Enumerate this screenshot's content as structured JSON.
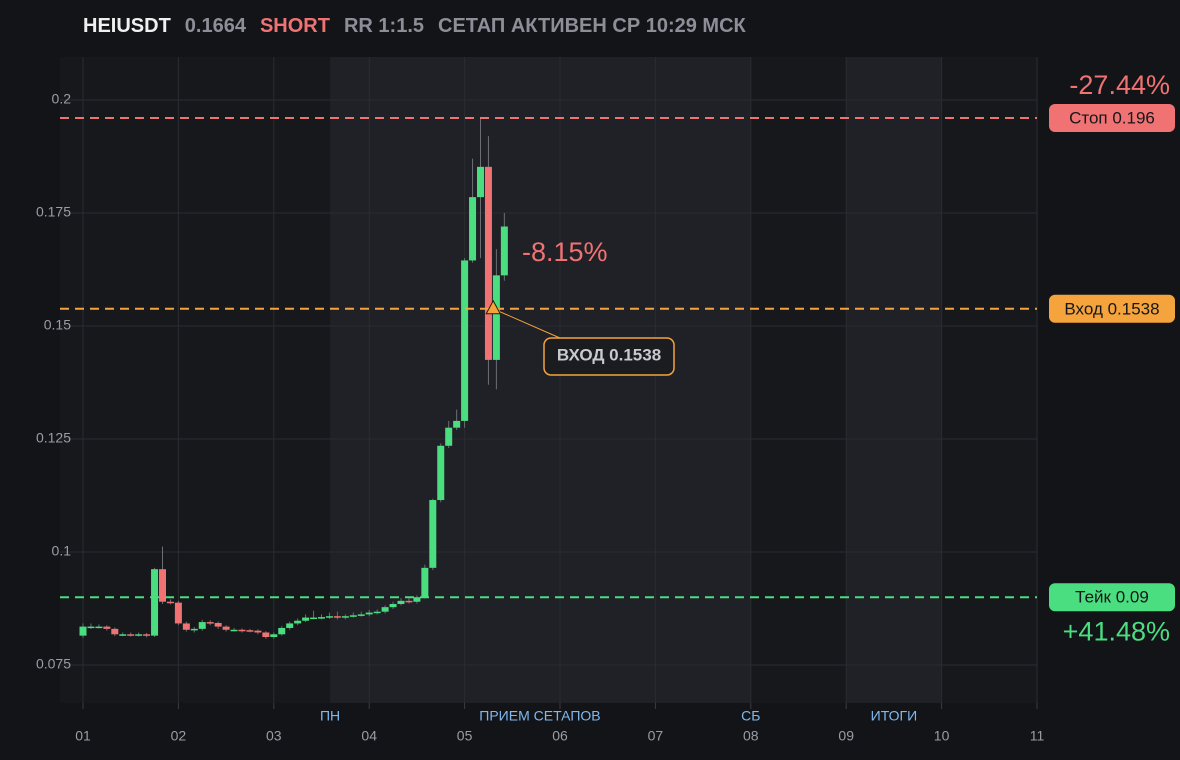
{
  "chart_data": {
    "type": "candlestick",
    "title": "HEIUSDT",
    "price": "0.1664",
    "side": "SHORT",
    "rr": "RR 1:1.5",
    "status": "СЕТАП АКТИВЕН СР 10:29 МСК",
    "up_color": "#4ade80",
    "down_color": "#f07272",
    "grid": true,
    "xlim": [
      1,
      11
    ],
    "xticks": [
      {
        "value": 1,
        "label": "01"
      },
      {
        "value": 2,
        "label": "02"
      },
      {
        "value": 3,
        "label": "03"
      },
      {
        "value": 4,
        "label": "04"
      },
      {
        "value": 5,
        "label": "05"
      },
      {
        "value": 6,
        "label": "06"
      },
      {
        "value": 7,
        "label": "07"
      },
      {
        "value": 8,
        "label": "08"
      },
      {
        "value": 9,
        "label": "09"
      },
      {
        "value": 10,
        "label": "10"
      },
      {
        "value": 11,
        "label": "11"
      }
    ],
    "ylim": [
      0.0666,
      0.2095
    ],
    "yticks": [
      0.075,
      0.1,
      0.125,
      0.15,
      0.175,
      0.2
    ],
    "x": [
      1,
      1.0833,
      1.1667,
      1.25,
      1.3333,
      1.4167,
      1.5,
      1.5833,
      1.6667,
      1.75,
      1.8333,
      1.9167,
      2,
      2.0833,
      2.1667,
      2.25,
      2.3333,
      2.4167,
      2.5,
      2.5833,
      2.6667,
      2.75,
      2.8333,
      2.9167,
      3,
      3.0833,
      3.1667,
      3.25,
      3.3333,
      3.4167,
      3.5,
      3.5833,
      3.6667,
      3.75,
      3.8333,
      3.9167,
      4,
      4.0833,
      4.1667,
      4.25,
      4.3333,
      4.4167,
      4.5,
      4.5833,
      4.6667,
      4.75,
      4.8333,
      4.9167,
      5,
      5.0833,
      5.1667,
      5.25,
      5.3333,
      5.4167
    ],
    "open": [
      0.0815,
      0.0835,
      0.0835,
      0.0835,
      0.083,
      0.0818,
      0.0818,
      0.0817,
      0.0818,
      0.0815,
      0.0962,
      0.089,
      0.0888,
      0.0842,
      0.0828,
      0.083,
      0.0845,
      0.0843,
      0.0835,
      0.0828,
      0.0828,
      0.0827,
      0.0826,
      0.0822,
      0.0812,
      0.0818,
      0.0832,
      0.0842,
      0.0848,
      0.0855,
      0.0855,
      0.0856,
      0.0858,
      0.0855,
      0.0858,
      0.086,
      0.0862,
      0.0866,
      0.0868,
      0.0878,
      0.0885,
      0.0892,
      0.089,
      0.09,
      0.0965,
      0.1115,
      0.1235,
      0.1275,
      0.129,
      0.1645,
      0.1785,
      0.1852,
      0.1425,
      0.1612
    ],
    "high": [
      0.0842,
      0.0842,
      0.084,
      0.0838,
      0.0833,
      0.0822,
      0.0822,
      0.0822,
      0.0821,
      0.0965,
      0.1012,
      0.0895,
      0.0892,
      0.0846,
      0.0834,
      0.085,
      0.0849,
      0.0846,
      0.0838,
      0.0832,
      0.0831,
      0.083,
      0.0829,
      0.0825,
      0.0822,
      0.0836,
      0.0846,
      0.0853,
      0.0862,
      0.087,
      0.0862,
      0.0866,
      0.0868,
      0.0862,
      0.0866,
      0.0868,
      0.0872,
      0.0873,
      0.0882,
      0.089,
      0.0898,
      0.0898,
      0.0904,
      0.0972,
      0.1118,
      0.124,
      0.129,
      0.1315,
      0.165,
      0.187,
      0.196,
      0.192,
      0.167,
      0.175
    ],
    "low": [
      0.081,
      0.083,
      0.0831,
      0.0826,
      0.0814,
      0.0814,
      0.0813,
      0.0813,
      0.0811,
      0.0812,
      0.0885,
      0.0884,
      0.0838,
      0.0824,
      0.0822,
      0.0826,
      0.0838,
      0.083,
      0.0824,
      0.0824,
      0.0822,
      0.0822,
      0.0818,
      0.0808,
      0.0808,
      0.0815,
      0.0828,
      0.0838,
      0.0845,
      0.0851,
      0.0851,
      0.0852,
      0.0851,
      0.0851,
      0.0855,
      0.0857,
      0.0858,
      0.0862,
      0.0864,
      0.0874,
      0.0882,
      0.0886,
      0.0886,
      0.0897,
      0.096,
      0.111,
      0.123,
      0.127,
      0.1275,
      0.164,
      0.165,
      0.137,
      0.136,
      0.16
    ],
    "close": [
      0.0835,
      0.0835,
      0.0835,
      0.083,
      0.0818,
      0.0818,
      0.0817,
      0.0818,
      0.0815,
      0.0962,
      0.089,
      0.0888,
      0.0842,
      0.0828,
      0.083,
      0.0845,
      0.0843,
      0.0835,
      0.0828,
      0.0828,
      0.0827,
      0.0826,
      0.0822,
      0.0812,
      0.0818,
      0.0832,
      0.0842,
      0.0848,
      0.0855,
      0.0855,
      0.0856,
      0.0858,
      0.0855,
      0.0858,
      0.086,
      0.0862,
      0.0866,
      0.0868,
      0.0878,
      0.0885,
      0.0892,
      0.089,
      0.09,
      0.0965,
      0.1115,
      0.1235,
      0.1275,
      0.129,
      0.1645,
      0.1785,
      0.1852,
      0.1425,
      0.1612,
      0.172
    ],
    "levels": [
      {
        "label": "Стоп 0.196",
        "value": 0.196,
        "pct": "-27.44%",
        "color": "#f07272"
      },
      {
        "label": "Вход 0.1538",
        "value": 0.1538,
        "color": "#f5a33c"
      },
      {
        "label": "Тейк 0.09",
        "value": 0.09,
        "pct": "+41.48%",
        "color": "#4ade80"
      }
    ],
    "entry": {
      "label": "ВХОД 0.1538",
      "x": 5.3,
      "value": 0.1538
    },
    "change_label": "-8.15%",
    "shaded": [
      [
        3.59,
        8
      ],
      [
        9,
        10
      ]
    ],
    "sessions": [
      {
        "label": "ПН",
        "x": 3.59
      },
      {
        "label": "ПРИЕМ СЕТАПОВ",
        "x": 5.79
      },
      {
        "label": "СБ",
        "x": 8
      },
      {
        "label": "ИТОГИ",
        "x": 9.5
      }
    ]
  }
}
